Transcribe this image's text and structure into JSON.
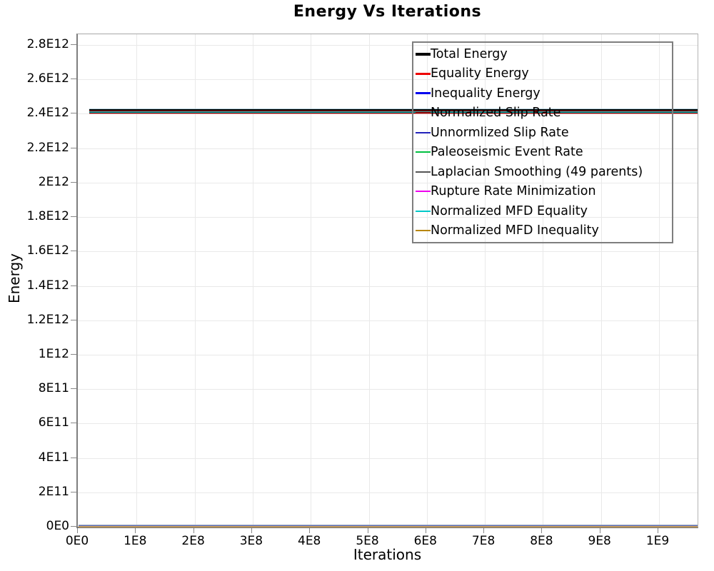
{
  "title": "Energy Vs Iterations",
  "chart_data": {
    "type": "line",
    "title": "Energy Vs Iterations",
    "xlabel": "Iterations",
    "ylabel": "Energy",
    "xlim": [
      0,
      1070000000.0
    ],
    "ylim": [
      0,
      2860000000000.0
    ],
    "grid": true,
    "legend_position": "inside top-right",
    "x_ticks": {
      "labels": [
        "0E0",
        "1E8",
        "2E8",
        "3E8",
        "4E8",
        "5E8",
        "6E8",
        "7E8",
        "8E8",
        "9E8",
        "1E9"
      ],
      "values": [
        0,
        100000000.0,
        200000000.0,
        300000000.0,
        400000000.0,
        500000000.0,
        600000000.0,
        700000000.0,
        800000000.0,
        900000000.0,
        1000000000.0
      ]
    },
    "y_ticks": {
      "labels": [
        "0E0",
        "2E11",
        "4E11",
        "6E11",
        "8E11",
        "1E12",
        "1.2E12",
        "1.4E12",
        "1.6E12",
        "1.8E12",
        "2E12",
        "2.2E12",
        "2.4E12",
        "2.6E12",
        "2.8E12"
      ],
      "values": [
        0,
        200000000000.0,
        400000000000.0,
        600000000000.0,
        800000000000.0,
        1000000000000.0,
        1200000000000.0,
        1400000000000.0,
        1600000000000.0,
        1800000000000.0,
        2000000000000.0,
        2200000000000.0,
        2400000000000.0,
        2600000000000.0,
        2800000000000.0
      ]
    },
    "series": [
      {
        "name": "Total Energy",
        "color": "#000000",
        "line_width": 4,
        "shape": "constant",
        "approx_value": 2420000000000.0
      },
      {
        "name": "Equality Energy",
        "color": "#ee0000",
        "line_width": 3,
        "shape": "constant",
        "approx_value": 2410000000000.0
      },
      {
        "name": "Inequality Energy",
        "color": "#0000ee",
        "line_width": 3,
        "shape": "constant",
        "approx_value": 5000000000.0
      },
      {
        "name": "Normalized Slip Rate",
        "color": "#990000",
        "line_width": 2,
        "shape": "constant",
        "approx_value": 2400000000000.0
      },
      {
        "name": "Unnormlized Slip Rate",
        "color": "#2222bb",
        "line_width": 2,
        "shape": "constant",
        "approx_value": 5000000000.0
      },
      {
        "name": "Paleoseismic Event Rate",
        "color": "#00c040",
        "line_width": 2,
        "shape": "constant",
        "approx_value": 3000000000.0
      },
      {
        "name": "Laplacian Smoothing (49 parents)",
        "color": "#555555",
        "line_width": 2,
        "shape": "constant",
        "approx_value": 4000000000.0
      },
      {
        "name": "Rupture Rate Minimization",
        "color": "#ee00ee",
        "line_width": 2,
        "shape": "constant",
        "approx_value": 2000000000.0
      },
      {
        "name": "Normalized MFD Equality",
        "color": "#00c8c8",
        "line_width": 2,
        "shape": "constant",
        "approx_value": 2410000000000.0
      },
      {
        "name": "Normalized MFD Inequality",
        "color": "#b8860b",
        "line_width": 2,
        "shape": "constant",
        "approx_value": 8000000000.0
      }
    ],
    "x_data_start": 18000000.0,
    "overlap_bands": [
      {
        "center_value": 2413000000000.0,
        "x_start_value": 18000000.0,
        "stripes": [
          [
            "#b3cdd9",
            1
          ],
          [
            "#000000",
            2
          ],
          [
            "#cc1111",
            1
          ],
          [
            "#009e9e",
            2
          ],
          [
            "#8b0000",
            1
          ],
          [
            "#d89a9a",
            1
          ]
        ]
      },
      {
        "center_value": 4500000000.0,
        "x_start_value": 0,
        "stripes": [
          [
            "#98a8c0",
            1
          ],
          [
            "#5f6fbd",
            1
          ],
          [
            "#c49a5a",
            2
          ]
        ]
      }
    ],
    "frame_color": "#808080",
    "gridline_color": "#e9e9e9"
  }
}
